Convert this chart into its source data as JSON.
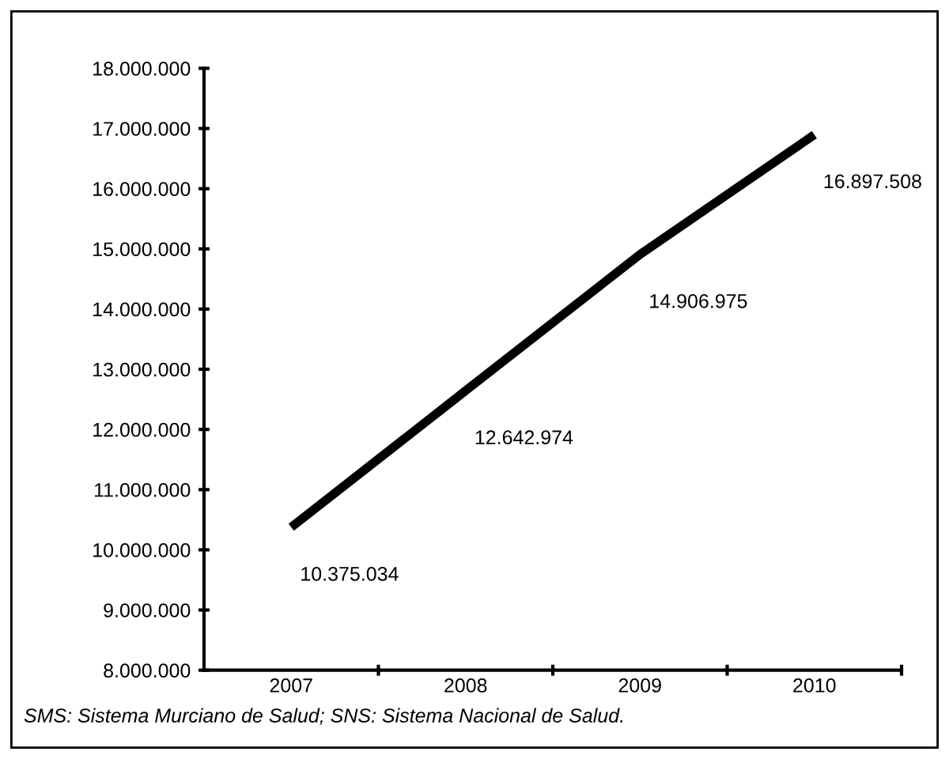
{
  "chart_data": {
    "type": "line",
    "categories": [
      "2007",
      "2008",
      "2009",
      "2010"
    ],
    "series": [
      {
        "color": "#000000",
        "values": [
          10375034,
          12642974,
          14906975,
          16897508
        ],
        "value_labels": [
          "10.375.034",
          "12.642.974",
          "14.906.975",
          "16.897.508"
        ]
      }
    ],
    "ylim": [
      8000000,
      18000000
    ],
    "yticks": [
      {
        "value": 8000000,
        "label": "8.000.000"
      },
      {
        "value": 9000000,
        "label": "9.000.000"
      },
      {
        "value": 10000000,
        "label": "10.000.000"
      },
      {
        "value": 11000000,
        "label": "11.000.000"
      },
      {
        "value": 12000000,
        "label": "12.000.000"
      },
      {
        "value": 13000000,
        "label": "13.000.000"
      },
      {
        "value": 14000000,
        "label": "14.000.000"
      },
      {
        "value": 15000000,
        "label": "15.000.000"
      },
      {
        "value": 16000000,
        "label": "16.000.000"
      },
      {
        "value": 17000000,
        "label": "17.000.000"
      },
      {
        "value": 18000000,
        "label": "18.000.000"
      }
    ],
    "grid": false,
    "legend": false,
    "marker": "none",
    "line_style": "solid",
    "annotations": [
      "SMS: Sistema Murciano de Salud; SNS: Sistema Nacional de Salud."
    ]
  }
}
